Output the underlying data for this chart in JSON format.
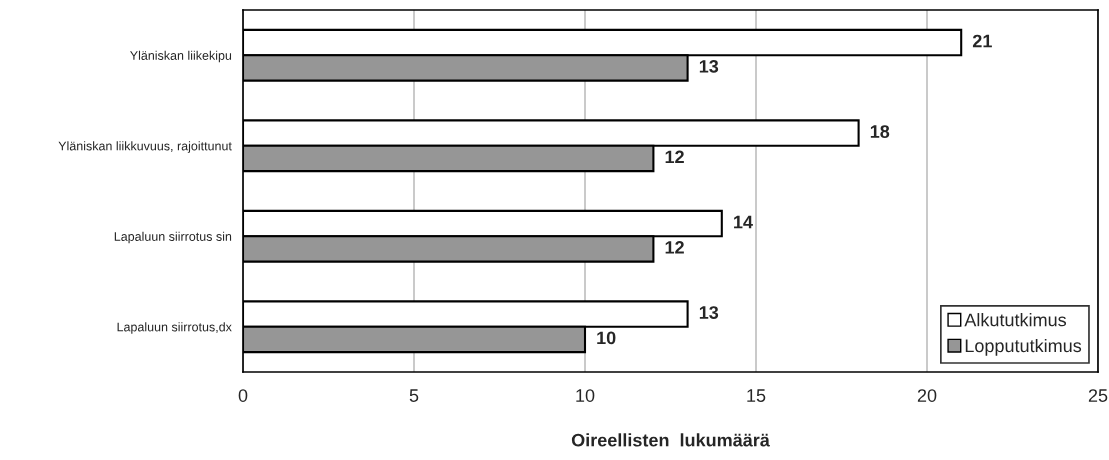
{
  "chart_data": {
    "type": "bar",
    "orientation": "horizontal",
    "categories": [
      "Yläniskan liikekipu",
      "Yläniskan liikkuvuus, rajoittunut",
      "Lapaluun siirrotus sin",
      "Lapaluun siirrotus,dx"
    ],
    "series": [
      {
        "name": "Alkututkimus",
        "color": "#ffffff",
        "values": [
          21,
          18,
          14,
          13
        ]
      },
      {
        "name": "Loppututkimus",
        "color": "#969696",
        "values": [
          13,
          12,
          12,
          10
        ]
      }
    ],
    "xlabel": "Oireellisten  lukumäärä",
    "xlim": [
      0,
      25
    ],
    "xticks": [
      0,
      5,
      10,
      15,
      20,
      25
    ],
    "grid": "x",
    "legend": "bottom right",
    "data_labels": true
  }
}
